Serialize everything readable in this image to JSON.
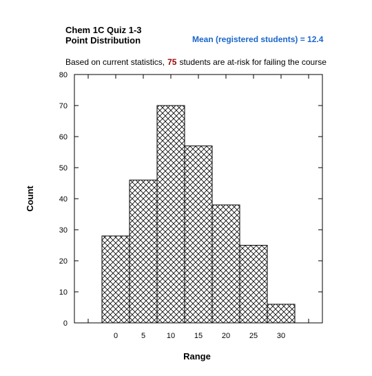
{
  "chart_data": {
    "type": "bar",
    "title_lines": [
      "Chem 1C Quiz 1-3",
      "Point Distribution"
    ],
    "mean_label": "Mean (registered students) = 12.4",
    "subtitle_parts": [
      "Based on current statistics,",
      "75",
      "students are at-risk for failing the course"
    ],
    "x_label": "Range",
    "y_label": "Count",
    "categories": [
      null,
      "0",
      "5",
      "10",
      "15",
      "20",
      "25",
      "30",
      null
    ],
    "values": [
      null,
      28,
      46,
      70,
      57,
      38,
      25,
      6,
      null
    ],
    "ylim": [
      0,
      80
    ],
    "yticks": [
      0,
      10,
      20,
      30,
      40,
      50,
      60,
      70,
      80
    ],
    "grid": false,
    "color": "#000000",
    "highlight_color": "#990000",
    "mean_color": "#1a66cc"
  }
}
